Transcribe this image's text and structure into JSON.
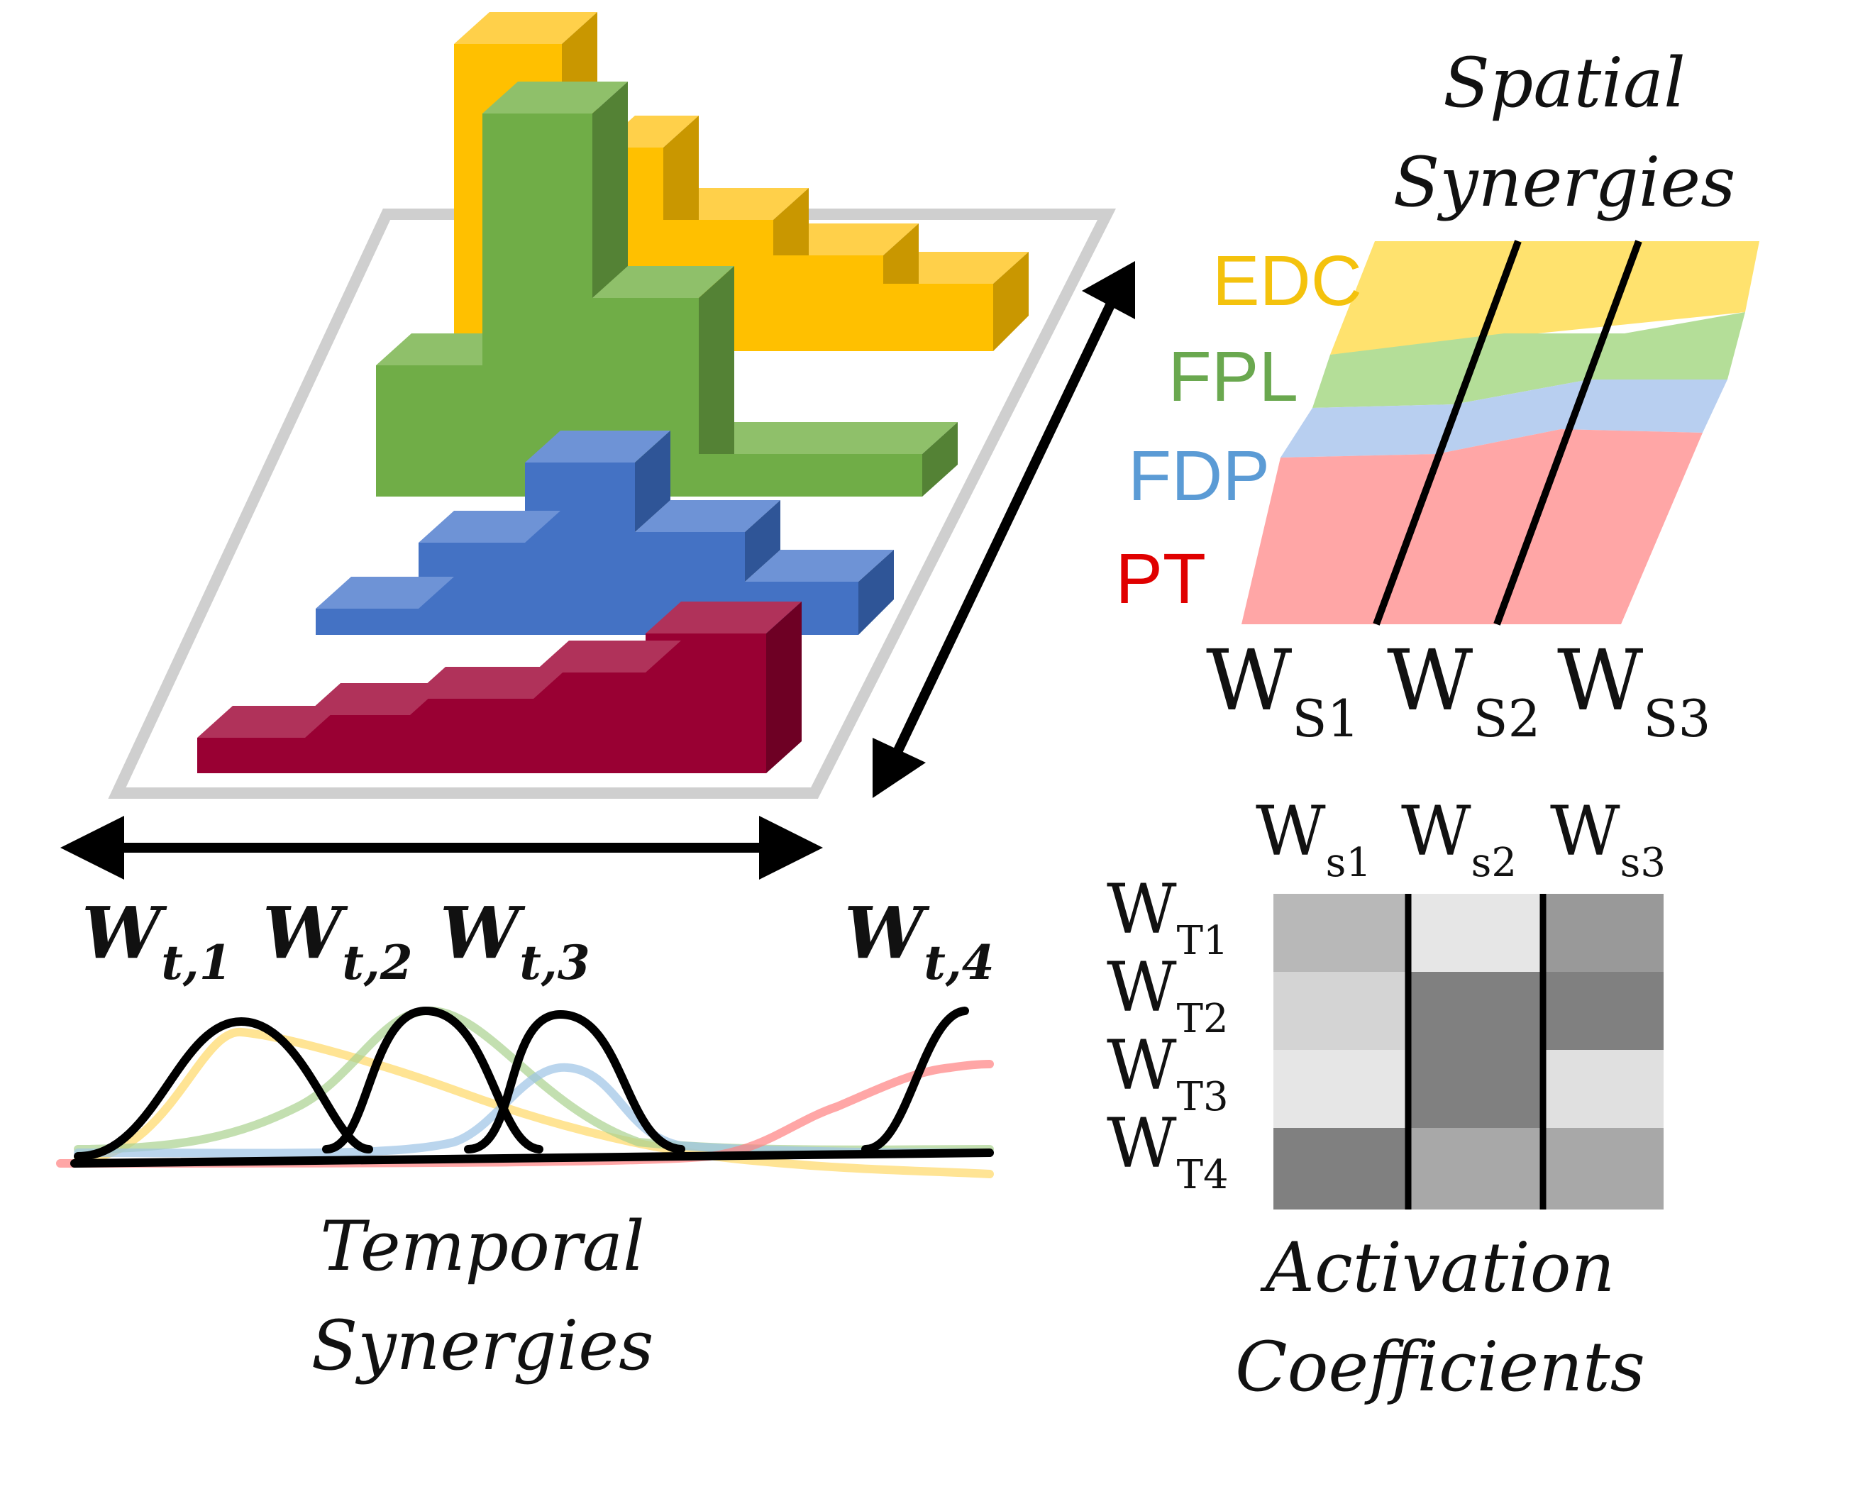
{
  "labels": {
    "spatial_line1": "Spatial",
    "spatial_line2": "Synergies",
    "temporal_line1": "Temporal",
    "temporal_line2": "Synergies",
    "activation_line1": "Activation",
    "activation_line2": "Coefficients"
  },
  "muscles": [
    {
      "name": "EDC",
      "color": "#f4c20d"
    },
    {
      "name": "FPL",
      "color": "#6aa84f"
    },
    {
      "name": "FDP",
      "color": "#5b9bd5"
    },
    {
      "name": "PT",
      "color": "#e00000"
    }
  ],
  "spatial_synergy_labels": [
    {
      "base": "W",
      "sub": "S1"
    },
    {
      "base": "W",
      "sub": "S2"
    },
    {
      "base": "W",
      "sub": "S3"
    }
  ],
  "temporal_synergy_labels": [
    {
      "base": "W",
      "sub": "t,1"
    },
    {
      "base": "W",
      "sub": "t,2"
    },
    {
      "base": "W",
      "sub": "t,3"
    },
    {
      "base": "W",
      "sub": "t,4"
    }
  ],
  "activation_columns": [
    {
      "base": "W",
      "sub": "s1"
    },
    {
      "base": "W",
      "sub": "s2"
    },
    {
      "base": "W",
      "sub": "s3"
    }
  ],
  "activation_rows": [
    {
      "base": "W",
      "sub": "T1"
    },
    {
      "base": "W",
      "sub": "T2"
    },
    {
      "base": "W",
      "sub": "T3"
    },
    {
      "base": "W",
      "sub": "T4"
    }
  ],
  "activation_gray_levels": [
    [
      0.72,
      0.9,
      0.6
    ],
    [
      0.83,
      0.5,
      0.5
    ],
    [
      0.9,
      0.5,
      0.88
    ],
    [
      0.5,
      0.66,
      0.66
    ]
  ]
}
